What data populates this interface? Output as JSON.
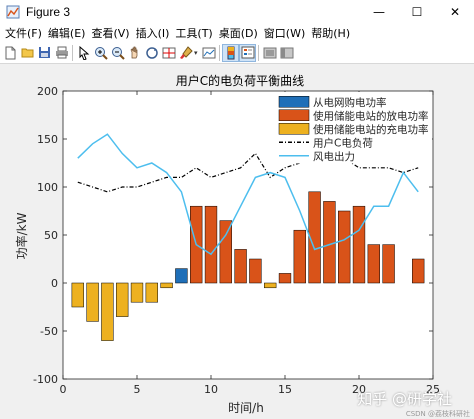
{
  "window": {
    "title": "Figure 3",
    "controls": [
      "—",
      "☐",
      "✕"
    ]
  },
  "menu": [
    "文件(F)",
    "编辑(E)",
    "查看(V)",
    "插入(I)",
    "工具(T)",
    "桌面(D)",
    "窗口(W)",
    "帮助(H)"
  ],
  "toolbar_icons": [
    "new-file-icon",
    "open-folder-icon",
    "save-icon",
    "print-icon",
    "pointer-icon",
    "zoom-in-icon",
    "zoom-out-icon",
    "pan-icon",
    "rotate-3d-icon",
    "data-cursor-icon",
    "brush-icon",
    "link-plot-icon",
    "colorbar-icon",
    "legend-icon",
    "hide-plot-tools-icon",
    "show-plot-tools-icon"
  ],
  "watermark": "知乎 @研学社",
  "credit": "CSDN @荔枝科研社",
  "colors": {
    "grid": "#ffffff",
    "buy": "#1f6fb8",
    "discharge": "#d95319",
    "charge": "#edb120",
    "load": "#000000",
    "wind": "#4dbeee"
  },
  "chart_data": {
    "type": "bar",
    "title": "用户C的电负荷平衡曲线",
    "xlabel": "时间/h",
    "ylabel": "功率/kW",
    "xlim": [
      0,
      25
    ],
    "ylim": [
      -100,
      200
    ],
    "xticks": [
      0,
      5,
      10,
      15,
      20,
      25
    ],
    "yticks": [
      -100,
      -50,
      0,
      50,
      100,
      150,
      200
    ],
    "legend_position": "top-right",
    "x": [
      1,
      2,
      3,
      4,
      5,
      6,
      7,
      8,
      9,
      10,
      11,
      12,
      13,
      14,
      15,
      16,
      17,
      18,
      19,
      20,
      21,
      22,
      23,
      24
    ],
    "series": [
      {
        "name": "从电网购电功率",
        "kind": "bar",
        "color": "#1f6fb8",
        "values": [
          0,
          0,
          0,
          0,
          0,
          0,
          0,
          15,
          0,
          0,
          0,
          0,
          0,
          0,
          0,
          0,
          0,
          0,
          0,
          0,
          0,
          0,
          0,
          0
        ]
      },
      {
        "name": "使用储能电站的放电功率",
        "kind": "bar",
        "color": "#d95319",
        "values": [
          0,
          0,
          0,
          0,
          0,
          0,
          0,
          0,
          80,
          80,
          65,
          35,
          25,
          0,
          10,
          55,
          95,
          85,
          75,
          80,
          40,
          40,
          0,
          25
        ]
      },
      {
        "name": "使用储能电站的充电功率",
        "kind": "bar",
        "color": "#edb120",
        "values": [
          -25,
          -40,
          -60,
          -35,
          -20,
          -20,
          -5,
          0,
          0,
          0,
          0,
          0,
          0,
          -5,
          0,
          0,
          0,
          0,
          0,
          0,
          0,
          0,
          0,
          0
        ]
      },
      {
        "name": "用户C电负荷",
        "kind": "dashline",
        "color": "#000000",
        "values": [
          105,
          100,
          95,
          100,
          100,
          105,
          110,
          110,
          120,
          110,
          115,
          120,
          135,
          110,
          120,
          125,
          130,
          125,
          130,
          120,
          120,
          120,
          115,
          120
        ]
      },
      {
        "name": "风电出力",
        "kind": "line",
        "color": "#4dbeee",
        "values": [
          130,
          145,
          155,
          135,
          120,
          125,
          115,
          95,
          40,
          30,
          50,
          80,
          110,
          115,
          110,
          75,
          35,
          40,
          45,
          55,
          80,
          80,
          115,
          95
        ]
      }
    ]
  }
}
